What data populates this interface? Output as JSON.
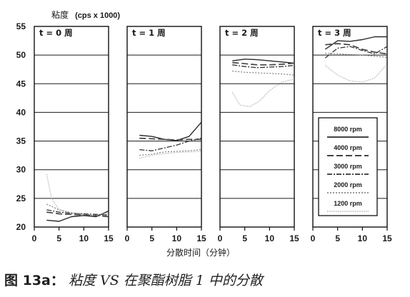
{
  "yaxis_title_prefix": "粘度",
  "yaxis_title_unit": "(cps x 1000)",
  "xlabel": "分散时间（分钟）",
  "caption": {
    "figure_no": "图 13a：",
    "text": "粘度 VS 在聚酯树脂 1 中的分散"
  },
  "chart_data": {
    "type": "line",
    "xlim": [
      0,
      15
    ],
    "ylim": [
      20,
      55
    ],
    "y_ticks": [
      20,
      25,
      30,
      35,
      40,
      45,
      50,
      55
    ],
    "x_ticks": [
      0,
      5,
      10,
      15
    ],
    "grid": "horizontal",
    "legend_placement": "lower-right of fourth panel",
    "legend": [
      "8000 rpm",
      "4000 rpm",
      "3000 rpm",
      "2000 rpm",
      "1200 rpm"
    ],
    "panels": [
      {
        "title": "t = 0 周",
        "series": [
          {
            "name": "8000 rpm",
            "points": [
              [
                2.5,
                21.2
              ],
              [
                5,
                21.0
              ],
              [
                7.5,
                21.8
              ],
              [
                10,
                22.0
              ],
              [
                12.5,
                21.8
              ],
              [
                15,
                22.8
              ]
            ]
          },
          {
            "name": "4000 rpm",
            "points": [
              [
                2.5,
                22.6
              ],
              [
                5,
                22.3
              ],
              [
                7.5,
                22.2
              ],
              [
                10,
                22.1
              ],
              [
                12.5,
                22.0
              ],
              [
                15,
                21.8
              ]
            ]
          },
          {
            "name": "3000 rpm",
            "points": [
              [
                2.5,
                23.0
              ],
              [
                5,
                22.6
              ],
              [
                7.5,
                22.4
              ],
              [
                10,
                22.3
              ],
              [
                12.5,
                22.2
              ],
              [
                15,
                22.1
              ]
            ]
          },
          {
            "name": "2000 rpm",
            "points": [
              [
                2.5,
                24.0
              ],
              [
                5,
                23.0
              ],
              [
                7.5,
                22.5
              ],
              [
                10,
                22.2
              ],
              [
                12.5,
                22.0
              ],
              [
                15,
                22.0
              ]
            ]
          },
          {
            "name": "1200 rpm",
            "points": [
              [
                2.5,
                29.2
              ],
              [
                3.5,
                25.0
              ],
              [
                5,
                23.0
              ],
              [
                7.5,
                22.4
              ],
              [
                10,
                22.2
              ],
              [
                12.5,
                22.1
              ],
              [
                15,
                22.5
              ]
            ]
          }
        ]
      },
      {
        "title": "t = 1 周",
        "series": [
          {
            "name": "8000 rpm",
            "points": [
              [
                2.5,
                36.0
              ],
              [
                5,
                35.8
              ],
              [
                7.5,
                35.3
              ],
              [
                10,
                35.1
              ],
              [
                12.5,
                35.8
              ],
              [
                15,
                38.3
              ]
            ]
          },
          {
            "name": "4000 rpm",
            "points": [
              [
                2.5,
                35.5
              ],
              [
                5,
                35.4
              ],
              [
                7.5,
                35.3
              ],
              [
                10,
                35.2
              ],
              [
                12.5,
                35.3
              ],
              [
                15,
                35.3
              ]
            ]
          },
          {
            "name": "3000 rpm",
            "points": [
              [
                2.5,
                33.5
              ],
              [
                5,
                33.3
              ],
              [
                7.5,
                33.8
              ],
              [
                10,
                34.3
              ],
              [
                12.5,
                35.0
              ],
              [
                15,
                35.5
              ]
            ]
          },
          {
            "name": "2000 rpm",
            "points": [
              [
                2.5,
                32.5
              ],
              [
                5,
                32.7
              ],
              [
                7.5,
                33.1
              ],
              [
                10,
                33.2
              ],
              [
                12.5,
                33.3
              ],
              [
                15,
                33.5
              ]
            ]
          },
          {
            "name": "1200 rpm",
            "points": [
              [
                2.5,
                32.0
              ],
              [
                5,
                32.5
              ],
              [
                7.5,
                32.8
              ],
              [
                10,
                33.0
              ],
              [
                12.5,
                33.1
              ],
              [
                15,
                33.2
              ]
            ]
          }
        ]
      },
      {
        "title": "t = 2 周",
        "series": [
          {
            "name": "8000 rpm",
            "points": [
              [
                2.5,
                49.0
              ],
              [
                5,
                49.3
              ],
              [
                7.5,
                49.2
              ],
              [
                10,
                49.0
              ],
              [
                12.5,
                48.8
              ],
              [
                15,
                48.6
              ]
            ]
          },
          {
            "name": "4000 rpm",
            "points": [
              [
                2.5,
                48.7
              ],
              [
                5,
                48.5
              ],
              [
                7.5,
                48.3
              ],
              [
                10,
                48.3
              ],
              [
                12.5,
                48.4
              ],
              [
                15,
                48.6
              ]
            ]
          },
          {
            "name": "3000 rpm",
            "points": [
              [
                2.5,
                48.3
              ],
              [
                5,
                48.0
              ],
              [
                7.5,
                47.8
              ],
              [
                10,
                47.9
              ],
              [
                12.5,
                48.0
              ],
              [
                15,
                48.2
              ]
            ]
          },
          {
            "name": "2000 rpm",
            "points": [
              [
                2.5,
                47.2
              ],
              [
                5,
                47.0
              ],
              [
                7.5,
                46.9
              ],
              [
                10,
                46.8
              ],
              [
                12.5,
                46.7
              ],
              [
                15,
                46.5
              ]
            ]
          },
          {
            "name": "1200 rpm",
            "points": [
              [
                2.5,
                43.5
              ],
              [
                4,
                41.3
              ],
              [
                6,
                41.0
              ],
              [
                8,
                42.0
              ],
              [
                10,
                43.8
              ],
              [
                12.5,
                45.3
              ],
              [
                15,
                45.8
              ]
            ]
          }
        ]
      },
      {
        "title": "t = 3 周",
        "series": [
          {
            "name": "8000 rpm",
            "points": [
              [
                2.5,
                51.0
              ],
              [
                5,
                52.5
              ],
              [
                7.5,
                52.4
              ],
              [
                10,
                52.7
              ],
              [
                12.5,
                53.2
              ],
              [
                15,
                53.2
              ]
            ]
          },
          {
            "name": "4000 rpm",
            "points": [
              [
                2.5,
                51.8
              ],
              [
                5,
                52.0
              ],
              [
                7.5,
                51.8
              ],
              [
                10,
                51.0
              ],
              [
                12.5,
                50.5
              ],
              [
                15,
                50.2
              ]
            ]
          },
          {
            "name": "3000 rpm",
            "points": [
              [
                2.5,
                49.5
              ],
              [
                5,
                51.2
              ],
              [
                7.5,
                51.5
              ],
              [
                10,
                50.8
              ],
              [
                12.5,
                50.2
              ],
              [
                15,
                51.5
              ]
            ]
          },
          {
            "name": "2000 rpm",
            "points": [
              [
                2.5,
                50.3
              ],
              [
                5,
                50.2
              ],
              [
                7.5,
                50.1
              ],
              [
                10,
                50.0
              ],
              [
                12.5,
                49.8
              ],
              [
                15,
                49.6
              ]
            ]
          },
          {
            "name": "1200 rpm",
            "points": [
              [
                2.5,
                48.2
              ],
              [
                5,
                46.5
              ],
              [
                7.5,
                45.5
              ],
              [
                10,
                45.3
              ],
              [
                12.5,
                46.0
              ],
              [
                15,
                48.5
              ]
            ]
          }
        ]
      }
    ]
  }
}
